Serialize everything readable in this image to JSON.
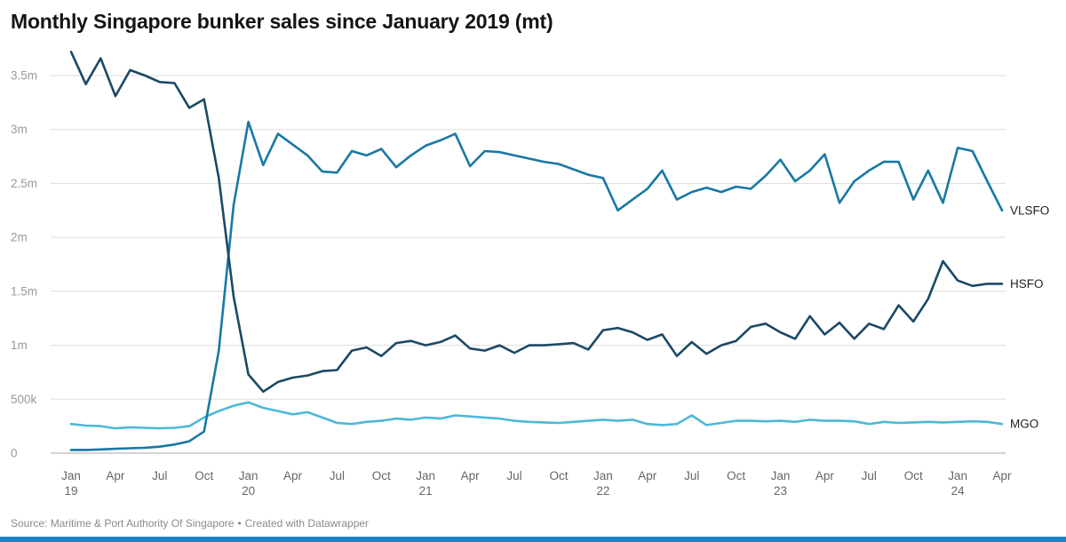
{
  "title": "Monthly Singapore bunker sales since January 2019 (mt)",
  "footer": {
    "source_text": "Source: Maritime & Port Authority Of Singapore",
    "separator": "•",
    "credit_text": "Created with Datawrapper"
  },
  "colors": {
    "vlsfo": "#1878a4",
    "hsfo": "#1b4965",
    "mgo": "#4db8d9",
    "grid": "#dddddd",
    "axis_baseline": "#aaaaaa",
    "y_tick_label": "#999999",
    "x_tick_label": "#666666",
    "series_label": "#222222",
    "title": "#151515",
    "source": "#8a8a8a",
    "footer_bar": "#1a85c6"
  },
  "chart_data": {
    "type": "line",
    "title": "Monthly Singapore bunker sales since January 2019 (mt)",
    "x_unit": "month",
    "x_range": [
      "2019-01",
      "2024-04"
    ],
    "ylim": [
      0,
      3750000
    ],
    "grid": "horizontal",
    "legend_position": "right-edge-labels",
    "y_ticks": [
      {
        "value": 0,
        "label": "0"
      },
      {
        "value": 500000,
        "label": "500k"
      },
      {
        "value": 1000000,
        "label": "1m"
      },
      {
        "value": 1500000,
        "label": "1.5m"
      },
      {
        "value": 2000000,
        "label": "2m"
      },
      {
        "value": 2500000,
        "label": "2.5m"
      },
      {
        "value": 3000000,
        "label": "3m"
      },
      {
        "value": 3500000,
        "label": "3.5m"
      }
    ],
    "x_ticks": [
      {
        "i": 0,
        "month": "Jan",
        "year": "19"
      },
      {
        "i": 3,
        "month": "Apr"
      },
      {
        "i": 6,
        "month": "Jul"
      },
      {
        "i": 9,
        "month": "Oct"
      },
      {
        "i": 12,
        "month": "Jan",
        "year": "20"
      },
      {
        "i": 15,
        "month": "Apr"
      },
      {
        "i": 18,
        "month": "Jul"
      },
      {
        "i": 21,
        "month": "Oct"
      },
      {
        "i": 24,
        "month": "Jan",
        "year": "21"
      },
      {
        "i": 27,
        "month": "Apr"
      },
      {
        "i": 30,
        "month": "Jul"
      },
      {
        "i": 33,
        "month": "Oct"
      },
      {
        "i": 36,
        "month": "Jan",
        "year": "22"
      },
      {
        "i": 39,
        "month": "Apr"
      },
      {
        "i": 42,
        "month": "Jul"
      },
      {
        "i": 45,
        "month": "Oct"
      },
      {
        "i": 48,
        "month": "Jan",
        "year": "23"
      },
      {
        "i": 51,
        "month": "Apr"
      },
      {
        "i": 54,
        "month": "Jul"
      },
      {
        "i": 57,
        "month": "Oct"
      },
      {
        "i": 60,
        "month": "Jan",
        "year": "24"
      },
      {
        "i": 63,
        "month": "Apr"
      }
    ],
    "series": [
      {
        "name": "VLSFO",
        "color": "#1878a4",
        "values": [
          30000,
          30000,
          35000,
          40000,
          45000,
          50000,
          60000,
          80000,
          110000,
          200000,
          950000,
          2300000,
          3070000,
          2670000,
          2960000,
          2860000,
          2760000,
          2610000,
          2600000,
          2800000,
          2760000,
          2820000,
          2650000,
          2760000,
          2850000,
          2900000,
          2960000,
          2660000,
          2800000,
          2790000,
          2760000,
          2730000,
          2700000,
          2680000,
          2630000,
          2580000,
          2550000,
          2250000,
          2350000,
          2450000,
          2620000,
          2350000,
          2420000,
          2460000,
          2420000,
          2470000,
          2450000,
          2570000,
          2720000,
          2520000,
          2620000,
          2770000,
          2320000,
          2520000,
          2620000,
          2700000,
          2700000,
          2350000,
          2620000,
          2320000,
          2830000,
          2800000,
          2520000,
          2250000
        ]
      },
      {
        "name": "HSFO",
        "color": "#1b4965",
        "values": [
          3720000,
          3420000,
          3660000,
          3310000,
          3550000,
          3500000,
          3440000,
          3430000,
          3200000,
          3280000,
          2550000,
          1450000,
          730000,
          570000,
          660000,
          700000,
          720000,
          760000,
          770000,
          950000,
          980000,
          900000,
          1020000,
          1040000,
          1000000,
          1030000,
          1090000,
          970000,
          950000,
          1000000,
          930000,
          1000000,
          1000000,
          1010000,
          1020000,
          960000,
          1140000,
          1160000,
          1120000,
          1050000,
          1100000,
          900000,
          1030000,
          920000,
          1000000,
          1040000,
          1170000,
          1200000,
          1120000,
          1060000,
          1270000,
          1100000,
          1210000,
          1060000,
          1200000,
          1150000,
          1370000,
          1220000,
          1430000,
          1780000,
          1600000,
          1550000,
          1570000,
          1570000
        ]
      },
      {
        "name": "MGO",
        "color": "#4db8d9",
        "values": [
          270000,
          255000,
          250000,
          230000,
          240000,
          235000,
          230000,
          235000,
          250000,
          330000,
          390000,
          440000,
          470000,
          420000,
          390000,
          360000,
          380000,
          330000,
          280000,
          270000,
          290000,
          300000,
          320000,
          310000,
          330000,
          320000,
          350000,
          340000,
          330000,
          320000,
          300000,
          290000,
          285000,
          280000,
          290000,
          300000,
          310000,
          300000,
          310000,
          270000,
          260000,
          270000,
          350000,
          260000,
          280000,
          300000,
          300000,
          295000,
          300000,
          290000,
          310000,
          300000,
          300000,
          295000,
          270000,
          290000,
          280000,
          285000,
          290000,
          285000,
          290000,
          295000,
          290000,
          270000
        ]
      }
    ]
  }
}
